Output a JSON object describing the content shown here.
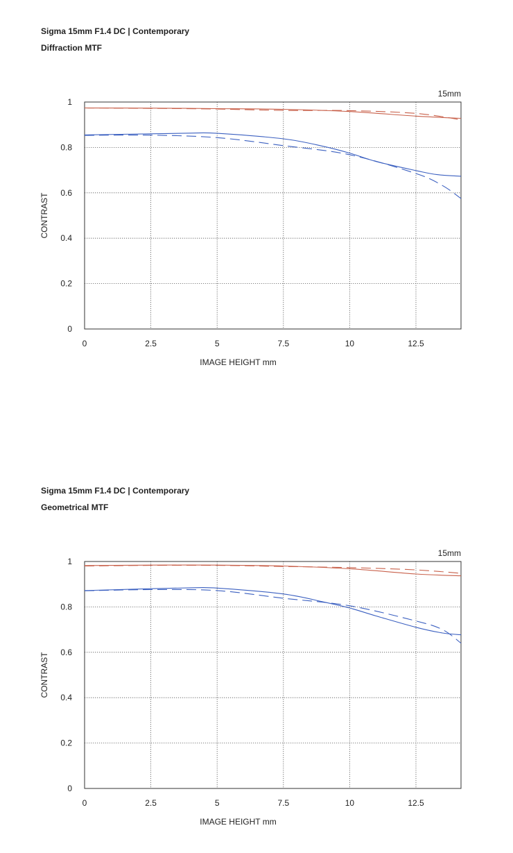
{
  "charts": [
    {
      "lens": "Sigma 15mm F1.4 DC | Contemporary",
      "subtitle": "Diffraction MTF",
      "focal_label": "15mm"
    },
    {
      "lens": "Sigma 15mm F1.4 DC | Contemporary",
      "subtitle": "Geometrical MTF",
      "focal_label": "15mm"
    }
  ],
  "colors": {
    "red": "#c8604a",
    "blue": "#3a5fc0",
    "grid": "#555555",
    "frame": "#333333"
  },
  "chart_data": [
    {
      "type": "line",
      "title": "Diffraction MTF",
      "xlabel": "IMAGE HEIGHT  mm",
      "ylabel": "CONTRAST",
      "xlim": [
        0,
        14.2
      ],
      "ylim": [
        0,
        1
      ],
      "x_ticks": [
        "0",
        "2.5",
        "5",
        "7.5",
        "10",
        "12.5"
      ],
      "y_ticks": [
        "0",
        "0.2",
        "0.4",
        "0.6",
        "0.8",
        "1"
      ],
      "grid": true,
      "series": [
        {
          "color": "red",
          "dash": false,
          "points": [
            [
              0,
              0.974
            ],
            [
              2.5,
              0.973
            ],
            [
              5,
              0.971
            ],
            [
              7.5,
              0.968
            ],
            [
              10,
              0.958
            ],
            [
              12.5,
              0.938
            ],
            [
              14.2,
              0.928
            ]
          ]
        },
        {
          "color": "red",
          "dash": true,
          "points": [
            [
              0,
              0.974
            ],
            [
              2.5,
              0.972
            ],
            [
              5,
              0.969
            ],
            [
              7.5,
              0.963
            ],
            [
              10,
              0.962
            ],
            [
              12.5,
              0.95
            ],
            [
              14.2,
              0.922
            ]
          ]
        },
        {
          "color": "blue",
          "dash": false,
          "points": [
            [
              0,
              0.855
            ],
            [
              2.5,
              0.86
            ],
            [
              4,
              0.863
            ],
            [
              5,
              0.862
            ],
            [
              7.5,
              0.838
            ],
            [
              9,
              0.805
            ],
            [
              10,
              0.775
            ],
            [
              11,
              0.738
            ],
            [
              12.5,
              0.698
            ],
            [
              13.3,
              0.68
            ],
            [
              14.2,
              0.673
            ]
          ]
        },
        {
          "color": "blue",
          "dash": true,
          "points": [
            [
              0,
              0.853
            ],
            [
              2.5,
              0.854
            ],
            [
              5,
              0.843
            ],
            [
              7.5,
              0.808
            ],
            [
              10,
              0.768
            ],
            [
              12.5,
              0.685
            ],
            [
              13.5,
              0.632
            ],
            [
              14.2,
              0.575
            ]
          ]
        }
      ]
    },
    {
      "type": "line",
      "title": "Geometrical MTF",
      "xlabel": "IMAGE HEIGHT  mm",
      "ylabel": "CONTRAST",
      "xlim": [
        0,
        14.2
      ],
      "ylim": [
        0,
        1
      ],
      "x_ticks": [
        "0",
        "2.5",
        "5",
        "7.5",
        "10",
        "12.5"
      ],
      "y_ticks": [
        "0",
        "0.2",
        "0.4",
        "0.6",
        "0.8",
        "1"
      ],
      "grid": true,
      "series": [
        {
          "color": "red",
          "dash": false,
          "points": [
            [
              0,
              0.982
            ],
            [
              2.5,
              0.984
            ],
            [
              5,
              0.984
            ],
            [
              7.5,
              0.98
            ],
            [
              10,
              0.968
            ],
            [
              12.5,
              0.945
            ],
            [
              14.2,
              0.937
            ]
          ]
        },
        {
          "color": "red",
          "dash": true,
          "points": [
            [
              0,
              0.98
            ],
            [
              2.5,
              0.983
            ],
            [
              5,
              0.983
            ],
            [
              7.5,
              0.978
            ],
            [
              10,
              0.973
            ],
            [
              12.5,
              0.963
            ],
            [
              14.2,
              0.948
            ]
          ]
        },
        {
          "color": "blue",
          "dash": false,
          "points": [
            [
              0,
              0.872
            ],
            [
              2.5,
              0.88
            ],
            [
              4,
              0.884
            ],
            [
              5,
              0.883
            ],
            [
              7.5,
              0.857
            ],
            [
              9,
              0.822
            ],
            [
              10,
              0.795
            ],
            [
              11,
              0.76
            ],
            [
              12.5,
              0.71
            ],
            [
              13.5,
              0.685
            ],
            [
              14.2,
              0.677
            ]
          ]
        },
        {
          "color": "blue",
          "dash": true,
          "points": [
            [
              0,
              0.871
            ],
            [
              2.5,
              0.876
            ],
            [
              5,
              0.872
            ],
            [
              7.5,
              0.838
            ],
            [
              10,
              0.805
            ],
            [
              12.5,
              0.738
            ],
            [
              13.5,
              0.7
            ],
            [
              14.2,
              0.64
            ]
          ]
        }
      ]
    }
  ]
}
